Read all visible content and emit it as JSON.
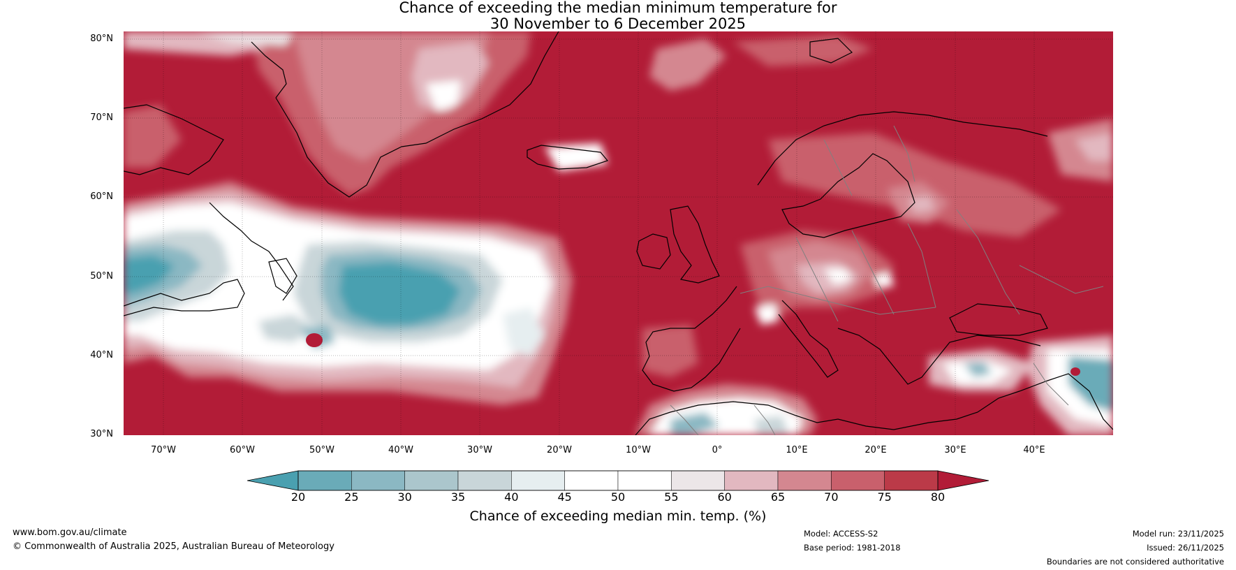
{
  "title_line1": "Chance of exceeding the median minimum temperature for",
  "title_line2": "30 November to 6 December 2025",
  "lat_labels": [
    "80°N",
    "70°N",
    "60°N",
    "50°N",
    "40°N",
    "30°N"
  ],
  "lon_labels": [
    "70°W",
    "60°W",
    "50°W",
    "40°W",
    "30°W",
    "20°W",
    "10°W",
    "0°",
    "10°E",
    "20°E",
    "30°E",
    "40°E"
  ],
  "lat_range": [
    30,
    81
  ],
  "lon_range": [
    -75,
    50
  ],
  "colorbar": {
    "ticks": [
      "20",
      "25",
      "30",
      "35",
      "40",
      "45",
      "50",
      "55",
      "60",
      "65",
      "70",
      "75",
      "80"
    ],
    "tick_values": [
      20,
      25,
      30,
      35,
      40,
      45,
      50,
      55,
      60,
      65,
      70,
      75,
      80
    ],
    "colors": [
      "#4aa0b0",
      "#6aabb8",
      "#8bb8c3",
      "#abc6cc",
      "#c9d6d9",
      "#e6eef0",
      "#ffffff",
      "#ffffff",
      "#ece6e8",
      "#e2b8c0",
      "#d48790",
      "#c9606c",
      "#bb3a48",
      "#b21c37"
    ],
    "label": "Chance of exceeding median min. temp. (%)"
  },
  "footer": {
    "website": "www.bom.gov.au/climate",
    "copyright": "© Commonwealth of Australia 2025, Australian Bureau of Meteorology",
    "model": "Model: ACCESS-S2",
    "base_period": "Base period: 1981-2018",
    "model_run": "Model run: 23/11/2025",
    "issued": "Issued: 26/11/2025",
    "disclaimer": "Boundaries are not considered authoritative"
  },
  "colors": {
    "high": "#b21c37",
    "low": "#3a9cb1",
    "coast": "#000000",
    "border": "#808080"
  }
}
